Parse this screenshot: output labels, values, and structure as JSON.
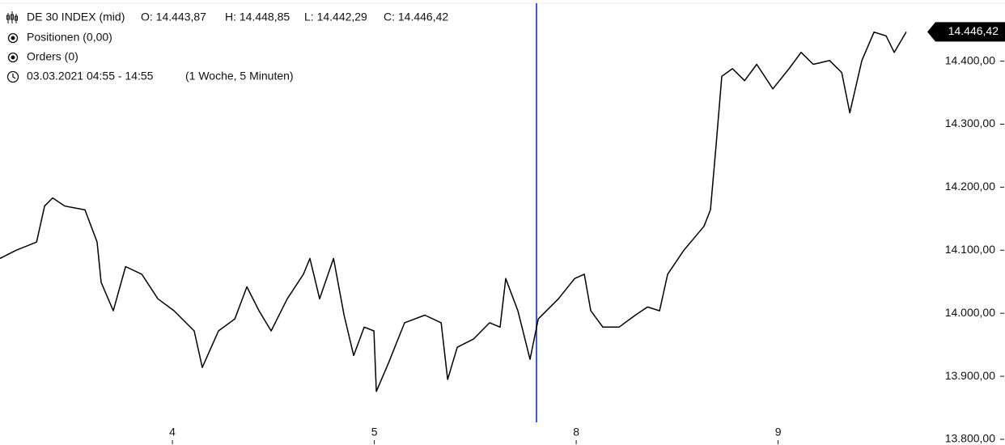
{
  "chart_data": {
    "type": "line",
    "title": "DE 30 INDEX (mid)",
    "ohlc_labels": [
      "O: 14.443,87",
      "H: 14.448,85",
      "L: 14.442,29",
      "C: 14.446,42"
    ],
    "info_lines": [
      "Positionen (0,00)",
      "Orders (0)"
    ],
    "period": "03.03.2021 04:55 - 14:55",
    "period_detail": "(1 Woche, 5 Minuten)",
    "last_price": {
      "value": 14446.42,
      "label": "14.446,42"
    },
    "xlim": [
      0.146,
      4.715
    ],
    "ylim": [
      13791,
      14497
    ],
    "xticks": [
      {
        "value": 1,
        "label": "4"
      },
      {
        "value": 2,
        "label": "5"
      },
      {
        "value": 3,
        "label": "8"
      },
      {
        "value": 4,
        "label": "9"
      }
    ],
    "yticks": [
      {
        "value": 13800,
        "label": "13.800,00"
      },
      {
        "value": 13900,
        "label": "13.900,00"
      },
      {
        "value": 14000,
        "label": "14.000,00"
      },
      {
        "value": 14100,
        "label": "14.100,00"
      },
      {
        "value": 14200,
        "label": "14.200,00"
      },
      {
        "value": 14300,
        "label": "14.300,00"
      },
      {
        "value": 14400,
        "label": "14.400,00"
      }
    ],
    "series": [
      {
        "color": "#000000",
        "x": [
          0.146,
          0.226,
          0.327,
          0.367,
          0.407,
          0.467,
          0.567,
          0.627,
          0.647,
          0.707,
          0.768,
          0.848,
          0.928,
          1.008,
          1.108,
          1.148,
          1.228,
          1.309,
          1.369,
          1.429,
          1.489,
          1.569,
          1.649,
          1.681,
          1.729,
          1.798,
          1.85,
          1.898,
          1.95,
          1.998,
          2.01,
          2.07,
          2.15,
          2.25,
          2.331,
          2.363,
          2.411,
          2.491,
          2.571,
          2.623,
          2.651,
          2.711,
          2.771,
          2.812,
          2.912,
          2.992,
          3.04,
          3.072,
          3.132,
          3.212,
          3.293,
          3.353,
          3.413,
          3.453,
          3.533,
          3.633,
          3.665,
          3.693,
          3.721,
          3.774,
          3.834,
          3.894,
          3.974,
          4.054,
          4.114,
          4.174,
          4.255,
          4.315,
          4.355,
          4.415,
          4.475,
          4.535,
          4.575,
          4.635
        ],
        "values": [
          14087,
          14100,
          14113,
          14170,
          14183,
          14170,
          14164,
          14113,
          14049,
          14004,
          14074,
          14062,
          14023,
          14004,
          13972,
          13914,
          13972,
          13991,
          14042,
          14004,
          13972,
          14023,
          14062,
          14087,
          14023,
          14087,
          13997,
          13933,
          13978,
          13972,
          13876,
          13921,
          13985,
          13997,
          13985,
          13895,
          13946,
          13959,
          13985,
          13978,
          14055,
          14004,
          13927,
          13991,
          14023,
          14055,
          14062,
          14004,
          13978,
          13978,
          13997,
          14010,
          14004,
          14062,
          14100,
          14138,
          14164,
          14267,
          14376,
          14388,
          14369,
          14395,
          14356,
          14388,
          14414,
          14395,
          14401,
          14382,
          14318,
          14401,
          14446,
          14440,
          14414,
          14446.42
        ]
      }
    ]
  }
}
